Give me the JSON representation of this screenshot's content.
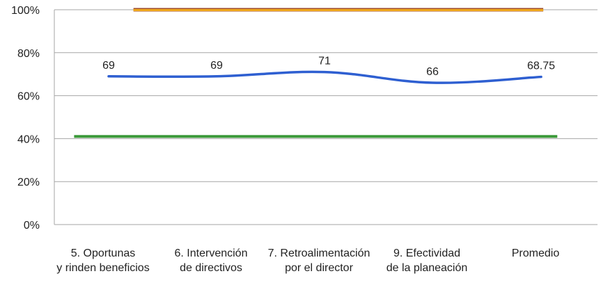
{
  "chart_data": {
    "type": "line",
    "categories": [
      [
        "5. Oportunas",
        "y rinden beneficios"
      ],
      [
        "6. Intervención",
        "de directivos"
      ],
      [
        "7. Retroalimentación",
        "por el director"
      ],
      [
        "9. Efectividad",
        "de la planeación"
      ],
      [
        "Promedio"
      ]
    ],
    "y_ticks": [
      "0%",
      "20%",
      "40%",
      "60%",
      "80%",
      "100%"
    ],
    "ylim": [
      0,
      100
    ],
    "grid": true,
    "legend": "none",
    "series": [
      {
        "values": [
          69,
          69,
          71,
          66,
          68.75
        ],
        "data_labels": [
          "69",
          "69",
          "71",
          "66",
          "68.75"
        ],
        "color": "#2e5fd1"
      }
    ],
    "reference_lines": [
      {
        "value": 100,
        "color": "#f0a81c",
        "x_from": 0.23,
        "x_to": 4.02
      },
      {
        "value": 41,
        "color": "#3c9a3a",
        "x_from": -0.32,
        "x_to": 4.15
      }
    ],
    "colors": {
      "gridline": "#a6a6a6",
      "top_line_border": "#9c4b2c"
    }
  }
}
